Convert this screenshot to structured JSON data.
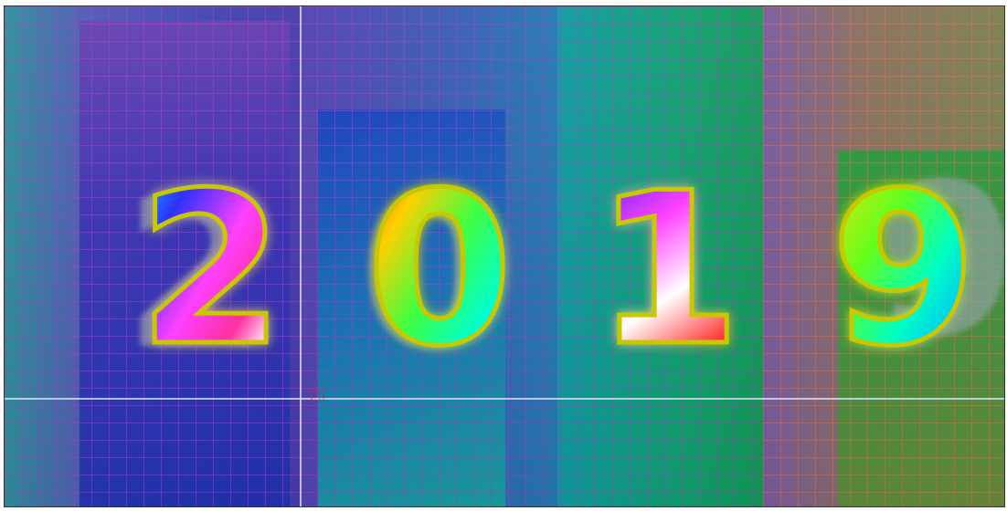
{
  "artwork": {
    "digits": [
      "2",
      "0",
      "1",
      "9"
    ],
    "digit_gradients": [
      [
        "#00e0ff",
        "#3030ff",
        "#ff40ff",
        "#ff30a0",
        "#ffffff",
        "#ff3030"
      ],
      [
        "#ff2020",
        "#ffd000",
        "#40ff40",
        "#00ffd0",
        "#00a0ff"
      ],
      [
        "#2020ff",
        "#ff40ff",
        "#ffffff",
        "#ff2020"
      ],
      [
        "#ffe000",
        "#60ff20",
        "#00ffc0",
        "#00c0ff",
        "#4060ff"
      ]
    ],
    "outline_color": "#c8c800",
    "glow_color": "#e0ff40"
  },
  "cursor_readout": {
    "line1": "X:??",
    "line2": "Y:??"
  },
  "colors": {
    "grid_purple": "#aa3cc8",
    "grid_orange": "#e66e3c",
    "guide": "#e6e6ff",
    "readout": "#e0203a"
  }
}
